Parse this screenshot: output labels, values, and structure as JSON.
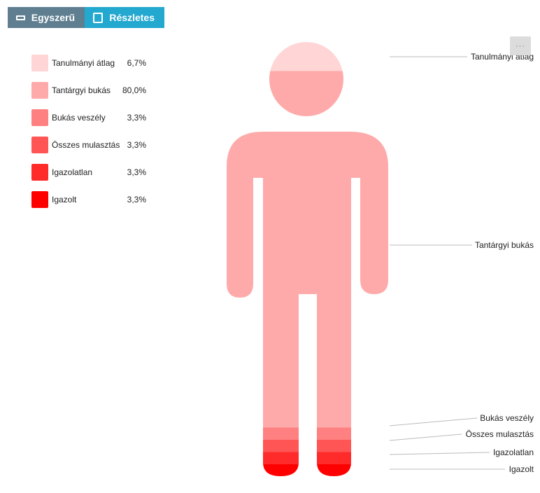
{
  "toolbar": {
    "simple_label": "Egyszerű",
    "detailed_label": "Részletes"
  },
  "menu": {
    "label": "···"
  },
  "chart_data": {
    "type": "pictorial",
    "shape": "person",
    "series": [
      {
        "name": "Tanulmányi átlag",
        "display": "6,7%",
        "value": 6.7,
        "color": "#ffd5d5"
      },
      {
        "name": "Tantárgyi bukás",
        "display": "80,0%",
        "value": 80.0,
        "color": "#ffaaaa"
      },
      {
        "name": "Bukás veszély",
        "display": "3,3%",
        "value": 3.3,
        "color": "#ff8080"
      },
      {
        "name": "Összes mulasztás",
        "display": "3,3%",
        "value": 3.3,
        "color": "#ff5555"
      },
      {
        "name": "Igazolatlan",
        "display": "3,3%",
        "value": 3.3,
        "color": "#ff2b2b"
      },
      {
        "name": "Igazolt",
        "display": "3,3%",
        "value": 3.3,
        "color": "#ff0000"
      }
    ],
    "legend_position": "top-left"
  }
}
